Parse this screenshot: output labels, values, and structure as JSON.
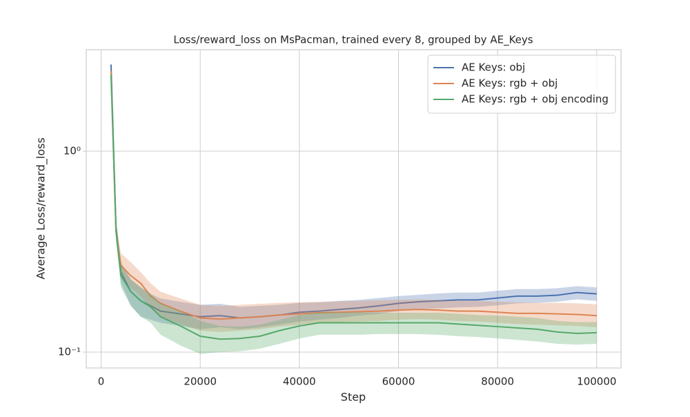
{
  "chart_data": {
    "type": "line",
    "title": "Loss/reward_loss on MsPacman, trained every 8, grouped by AE_Keys",
    "x_label": "Step",
    "y_label": "Average Loss/reward_loss",
    "x": [
      2000,
      3000,
      4000,
      6000,
      8000,
      10000,
      12000,
      16000,
      20000,
      24000,
      28000,
      32000,
      36000,
      40000,
      44000,
      48000,
      52000,
      56000,
      60000,
      64000,
      68000,
      72000,
      76000,
      80000,
      84000,
      88000,
      92000,
      96000,
      100000
    ],
    "series": [
      {
        "name": "AE Keys: obj",
        "color": "#4c72b0",
        "values": [
          2.7,
          0.42,
          0.25,
          0.2,
          0.18,
          0.17,
          0.16,
          0.155,
          0.15,
          0.152,
          0.148,
          0.15,
          0.153,
          0.158,
          0.16,
          0.163,
          0.166,
          0.17,
          0.175,
          0.178,
          0.18,
          0.182,
          0.182,
          0.186,
          0.19,
          0.19,
          0.192,
          0.198,
          0.195
        ],
        "lower": [
          2.5,
          0.38,
          0.22,
          0.17,
          0.15,
          0.145,
          0.14,
          0.135,
          0.13,
          0.133,
          0.13,
          0.133,
          0.137,
          0.142,
          0.145,
          0.148,
          0.152,
          0.155,
          0.16,
          0.163,
          0.165,
          0.167,
          0.168,
          0.171,
          0.175,
          0.176,
          0.178,
          0.183,
          0.18
        ],
        "upper": [
          2.9,
          0.46,
          0.28,
          0.23,
          0.21,
          0.195,
          0.185,
          0.178,
          0.172,
          0.174,
          0.168,
          0.17,
          0.172,
          0.176,
          0.177,
          0.18,
          0.182,
          0.186,
          0.19,
          0.193,
          0.196,
          0.198,
          0.198,
          0.202,
          0.206,
          0.206,
          0.208,
          0.213,
          0.21
        ]
      },
      {
        "name": "AE Keys: rgb + obj",
        "color": "#dd8452",
        "values": [
          2.5,
          0.4,
          0.27,
          0.24,
          0.22,
          0.19,
          0.175,
          0.16,
          0.148,
          0.146,
          0.148,
          0.15,
          0.153,
          0.155,
          0.157,
          0.158,
          0.159,
          0.16,
          0.162,
          0.163,
          0.162,
          0.16,
          0.16,
          0.158,
          0.156,
          0.156,
          0.155,
          0.154,
          0.152
        ],
        "lower": [
          2.3,
          0.36,
          0.24,
          0.21,
          0.19,
          0.165,
          0.15,
          0.138,
          0.128,
          0.126,
          0.128,
          0.13,
          0.134,
          0.137,
          0.14,
          0.141,
          0.142,
          0.143,
          0.145,
          0.146,
          0.145,
          0.143,
          0.142,
          0.14,
          0.138,
          0.137,
          0.136,
          0.135,
          0.133
        ],
        "upper": [
          2.7,
          0.44,
          0.31,
          0.28,
          0.25,
          0.22,
          0.2,
          0.185,
          0.172,
          0.17,
          0.172,
          0.174,
          0.176,
          0.177,
          0.178,
          0.179,
          0.18,
          0.181,
          0.182,
          0.183,
          0.182,
          0.18,
          0.18,
          0.178,
          0.177,
          0.176,
          0.176,
          0.175,
          0.173
        ]
      },
      {
        "name": "AE Keys: rgb + obj encoding",
        "color": "#55a868",
        "values": [
          2.4,
          0.4,
          0.24,
          0.2,
          0.18,
          0.168,
          0.15,
          0.135,
          0.12,
          0.116,
          0.117,
          0.12,
          0.128,
          0.135,
          0.14,
          0.14,
          0.14,
          0.14,
          0.14,
          0.14,
          0.14,
          0.138,
          0.136,
          0.134,
          0.132,
          0.13,
          0.126,
          0.124,
          0.125
        ],
        "lower": [
          2.2,
          0.36,
          0.21,
          0.17,
          0.15,
          0.14,
          0.122,
          0.108,
          0.098,
          0.1,
          0.101,
          0.104,
          0.11,
          0.117,
          0.122,
          0.122,
          0.122,
          0.123,
          0.123,
          0.123,
          0.122,
          0.12,
          0.119,
          0.117,
          0.115,
          0.113,
          0.11,
          0.109,
          0.11
        ],
        "upper": [
          2.6,
          0.44,
          0.27,
          0.23,
          0.21,
          0.195,
          0.175,
          0.16,
          0.143,
          0.135,
          0.134,
          0.137,
          0.145,
          0.153,
          0.158,
          0.158,
          0.158,
          0.157,
          0.157,
          0.157,
          0.157,
          0.155,
          0.153,
          0.152,
          0.15,
          0.148,
          0.143,
          0.141,
          0.141
        ]
      }
    ],
    "xlim": [
      -3000,
      104900
    ],
    "ylim": [
      0.0834,
      3.2
    ],
    "y_scale": "log",
    "xticks": [
      0,
      20000,
      40000,
      60000,
      80000,
      100000
    ],
    "yticks": [
      {
        "value": 0.1,
        "label": "10⁻¹"
      },
      {
        "value": 1,
        "label": "10⁰"
      }
    ],
    "grid": true,
    "legend": "upper right"
  }
}
